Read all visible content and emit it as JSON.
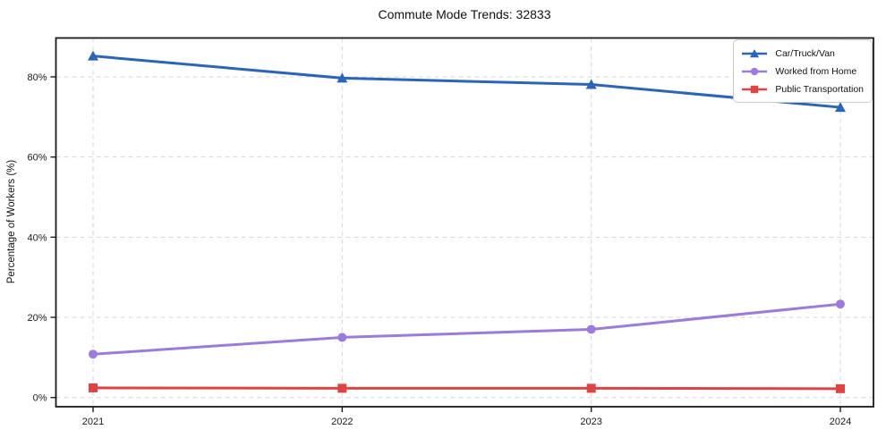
{
  "figure": {
    "background": "#ffffff",
    "spine_color": "#1a1a1a",
    "grid_color": "#d6d6d6",
    "tick_label_color": "#1a1a1a"
  },
  "chart_data": {
    "type": "line",
    "title": "Commute Mode Trends: 32833",
    "xlabel": "",
    "ylabel": "Percentage of Workers (%)",
    "x_tick_labels": [
      "2021",
      "2022",
      "2023",
      "2024"
    ],
    "y_tick_labels": [
      "0%",
      "20%",
      "40%",
      "60%",
      "80%"
    ],
    "y_tick_values": [
      0,
      20,
      40,
      60,
      80
    ],
    "ylim": [
      -2.3,
      89.7
    ],
    "grid": "dashed",
    "legend_position": "top-right",
    "series": [
      {
        "name": "Car/Truck/Van",
        "color": "#2b65b8",
        "marker": "triangle",
        "values": [
          85.2,
          79.7,
          78.1,
          72.4
        ]
      },
      {
        "name": "Worked from Home",
        "color": "#9b7bdb",
        "marker": "circle",
        "values": [
          10.8,
          15.0,
          17.0,
          23.3
        ]
      },
      {
        "name": "Public Transportation",
        "color": "#dd4444",
        "marker": "square",
        "values": [
          2.4,
          2.3,
          2.3,
          2.2
        ]
      }
    ]
  }
}
